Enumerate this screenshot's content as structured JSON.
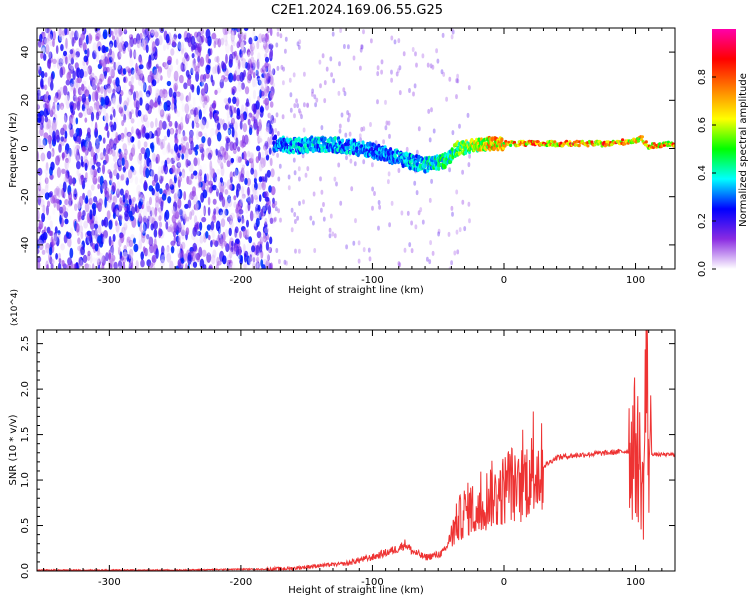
{
  "figure_title": "C2E1.2024.169.06.55.G25",
  "chart_data": [
    {
      "type": "heatmap",
      "xlabel": "Height of straight line (km)",
      "ylabel": "Frequency (Hz)",
      "xlim": [
        -355,
        130
      ],
      "ylim": [
        -50,
        50
      ],
      "x_ticks": [
        -300,
        -200,
        -100,
        0,
        100
      ],
      "y_ticks": [
        -40,
        -20,
        0,
        20,
        40
      ],
      "colorbar": {
        "label": "Normalized spectral amplitude",
        "range": [
          0,
          1
        ],
        "ticks": [
          "0.0",
          "0.2",
          "0.4",
          "0.6",
          "0.8"
        ],
        "colormap": [
          "#ffffff",
          "#8a2be2",
          "#0000ff",
          "#00ffff",
          "#00ff00",
          "#ffff00",
          "#ff8000",
          "#ff0000",
          "#ff00aa"
        ]
      },
      "signal_track": {
        "x": [
          -175,
          -160,
          -140,
          -120,
          -100,
          -80,
          -60,
          -45,
          -35,
          -25,
          -10,
          0,
          20,
          50,
          80,
          95,
          105,
          110,
          130
        ],
        "center_hz": [
          2,
          1,
          2,
          1,
          -1,
          -4,
          -7,
          -5,
          0,
          1,
          2,
          2,
          2,
          2,
          2,
          3,
          4,
          1,
          2
        ],
        "amplitude": [
          0.35,
          0.38,
          0.4,
          0.38,
          0.35,
          0.38,
          0.42,
          0.5,
          0.55,
          0.65,
          0.75,
          0.78,
          0.82,
          0.85,
          0.85,
          0.8,
          0.7,
          0.78,
          0.82
        ]
      }
    },
    {
      "type": "line",
      "xlabel": "Height of straight line (km)",
      "ylabel": "SNR (10 * v/v)",
      "y_multiplier": "(x10^4)",
      "xlim": [
        -355,
        130
      ],
      "ylim": [
        0,
        2.65
      ],
      "x_ticks": [
        -300,
        -200,
        -100,
        0,
        100
      ],
      "y_ticks": [
        "0.0",
        "0.5",
        "1.0",
        "1.5",
        "2.0",
        "2.5"
      ],
      "series": [
        {
          "color": "#ee3333",
          "x": [
            -355,
            -300,
            -250,
            -200,
            -180,
            -160,
            -140,
            -120,
            -110,
            -100,
            -90,
            -80,
            -75,
            -70,
            -60,
            -50,
            -45,
            -40,
            -35,
            -30,
            -25,
            -20,
            -15,
            -10,
            -5,
            0,
            5,
            10,
            15,
            20,
            30,
            40,
            60,
            80,
            95,
            100,
            103,
            106,
            108,
            110,
            115,
            130
          ],
          "y": [
            0.01,
            0.01,
            0.01,
            0.02,
            0.02,
            0.03,
            0.06,
            0.08,
            0.12,
            0.15,
            0.2,
            0.25,
            0.3,
            0.22,
            0.15,
            0.18,
            0.22,
            0.4,
            0.55,
            0.65,
            0.7,
            0.6,
            0.75,
            0.85,
            0.8,
            0.9,
            1.0,
            0.85,
            1.0,
            1.05,
            1.15,
            1.25,
            1.28,
            1.3,
            1.32,
            1.35,
            1.2,
            0.8,
            2.3,
            1.3,
            1.28,
            1.28
          ]
        }
      ]
    }
  ]
}
